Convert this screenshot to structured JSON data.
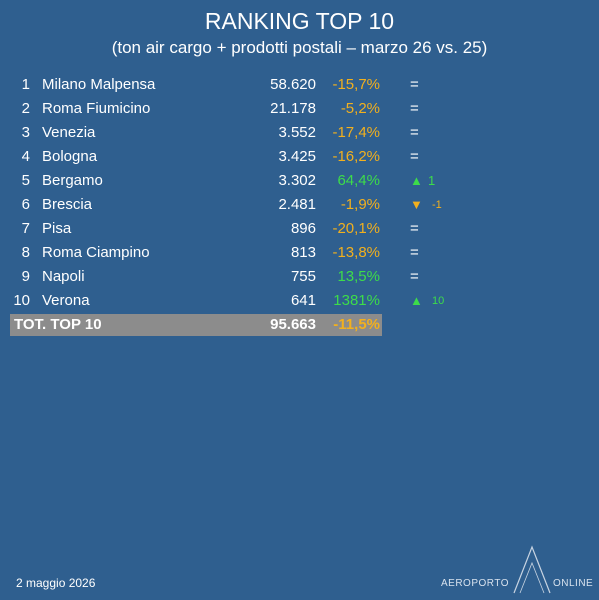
{
  "header": {
    "title": "RANKING TOP 10",
    "subtitle": "(ton air cargo + prodotti postali – marzo 26 vs. 25)"
  },
  "table": {
    "rows": [
      {
        "rank": "1",
        "name": "Milano Malpensa",
        "tons": "58.620",
        "change": "-15,7%",
        "trend": "="
      },
      {
        "rank": "2",
        "name": "Roma Fiumicino",
        "tons": "21.178",
        "change": "-5,2%",
        "trend": "="
      },
      {
        "rank": "3",
        "name": "Venezia",
        "tons": "3.552",
        "change": "-17,4%",
        "trend": "="
      },
      {
        "rank": "4",
        "name": "Bologna",
        "tons": "3.425",
        "change": "-16,2%",
        "trend": "="
      },
      {
        "rank": "5",
        "name": "Bergamo",
        "tons": "3.302",
        "change": "64,4%",
        "trend": "▲",
        "trend_value": "1"
      },
      {
        "rank": "6",
        "name": "Brescia",
        "tons": "2.481",
        "change": "-1,9%",
        "trend": "▼",
        "trend_value": "-1"
      },
      {
        "rank": "7",
        "name": "Pisa",
        "tons": "896",
        "change": "-20,1%",
        "trend": "="
      },
      {
        "rank": "8",
        "name": "Roma Ciampino",
        "tons": "813",
        "change": "-13,8%",
        "trend": "="
      },
      {
        "rank": "9",
        "name": "Napoli",
        "tons": "755",
        "change": "13,5%",
        "trend": "="
      },
      {
        "rank": "10",
        "name": "Verona",
        "tons": "641",
        "change": "1381%",
        "trend": "▲",
        "trend_value": "10"
      }
    ],
    "total": {
      "label": "TOT. TOP 10",
      "tons": "95.663",
      "change": "-11,5%"
    }
  },
  "footer": {
    "date": "2 maggio 2026",
    "logo_left": "AEROPORTO",
    "logo_right": "ONLINE"
  }
}
